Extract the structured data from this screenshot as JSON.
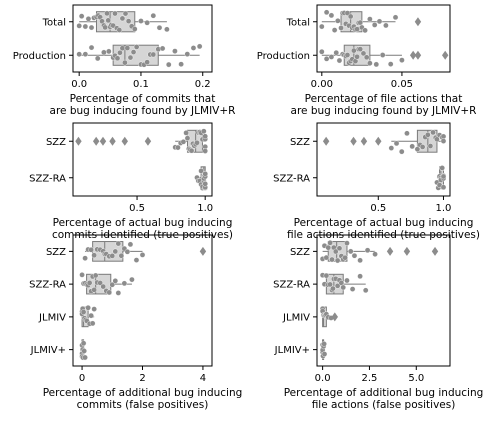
{
  "chart_data": [
    {
      "type": "box",
      "xlabel": [
        "Percentage of commits that",
        "are bug inducing found by JLMIV+R"
      ],
      "ylabel": "",
      "xlim": [
        -0.01,
        0.215
      ],
      "xticks": [
        0.0,
        0.1,
        0.2
      ],
      "xtick_labels": [
        "0.0",
        "0.1",
        "0.2"
      ],
      "categories": [
        "Total",
        "Production"
      ],
      "series": [
        {
          "category": "Total",
          "q1": 0.028,
          "median": 0.05,
          "q3": 0.09,
          "whisker_low": 0.0,
          "whisker_high": 0.142,
          "fliers": [],
          "points": [
            0.0,
            0.004,
            0.01,
            0.015,
            0.02,
            0.024,
            0.028,
            0.031,
            0.034,
            0.037,
            0.04,
            0.042,
            0.045,
            0.047,
            0.05,
            0.052,
            0.055,
            0.058,
            0.061,
            0.065,
            0.07,
            0.075,
            0.08,
            0.085,
            0.09,
            0.1,
            0.11,
            0.12,
            0.13,
            0.142
          ]
        },
        {
          "category": "Production",
          "q1": 0.055,
          "median": 0.074,
          "q3": 0.128,
          "whisker_low": 0.0,
          "whisker_high": 0.195,
          "fliers": [],
          "points": [
            0.0,
            0.01,
            0.02,
            0.03,
            0.04,
            0.048,
            0.055,
            0.058,
            0.062,
            0.066,
            0.07,
            0.074,
            0.078,
            0.083,
            0.088,
            0.093,
            0.1,
            0.105,
            0.11,
            0.115,
            0.12,
            0.128,
            0.135,
            0.145,
            0.155,
            0.165,
            0.175,
            0.185,
            0.195
          ]
        }
      ]
    },
    {
      "type": "box",
      "xlabel": [
        "Percentage of file actions that",
        "are bug inducing found by JLMIV+R"
      ],
      "ylabel": "",
      "xlim": [
        -0.003,
        0.08
      ],
      "xticks": [
        0.0,
        0.05
      ],
      "xtick_labels": [
        "0.00",
        "0.05"
      ],
      "categories": [
        "Total",
        "Production"
      ],
      "series": [
        {
          "category": "Total",
          "q1": 0.012,
          "median": 0.018,
          "q3": 0.025,
          "whisker_low": 0.0,
          "whisker_high": 0.046,
          "fliers": [
            0.06
          ],
          "points": [
            0.0,
            0.003,
            0.006,
            0.008,
            0.01,
            0.012,
            0.013,
            0.014,
            0.015,
            0.016,
            0.017,
            0.018,
            0.019,
            0.02,
            0.021,
            0.022,
            0.023,
            0.024,
            0.025,
            0.027,
            0.03,
            0.033,
            0.036,
            0.04,
            0.046
          ]
        },
        {
          "category": "Production",
          "q1": 0.014,
          "median": 0.02,
          "q3": 0.03,
          "whisker_low": 0.0,
          "whisker_high": 0.05,
          "fliers": [
            0.057,
            0.06,
            0.077
          ],
          "points": [
            0.0,
            0.003,
            0.006,
            0.009,
            0.011,
            0.013,
            0.014,
            0.015,
            0.016,
            0.017,
            0.018,
            0.019,
            0.02,
            0.021,
            0.022,
            0.023,
            0.024,
            0.026,
            0.028,
            0.03,
            0.034,
            0.038,
            0.043,
            0.05
          ]
        }
      ]
    },
    {
      "type": "box",
      "xlabel": [
        "Percentage of actual bug inducing",
        "commits identified (true positives)"
      ],
      "ylabel": "",
      "xlim": [
        0.03,
        1.05
      ],
      "xticks": [
        0.5,
        1.0
      ],
      "xtick_labels": [
        "0.5",
        "1.0"
      ],
      "categories": [
        "SZZ",
        "SZZ-RA"
      ],
      "series": [
        {
          "category": "SZZ",
          "q1": 0.87,
          "median": 0.93,
          "q3": 0.98,
          "whisker_low": 0.78,
          "whisker_high": 1.0,
          "fliers": [
            0.07,
            0.2,
            0.25,
            0.32,
            0.41,
            0.58
          ],
          "points": [
            0.78,
            0.8,
            0.82,
            0.84,
            0.86,
            0.87,
            0.88,
            0.89,
            0.9,
            0.91,
            0.92,
            0.93,
            0.94,
            0.95,
            0.96,
            0.97,
            0.98,
            0.99,
            1.0,
            1.0,
            1.0,
            1.0
          ]
        },
        {
          "category": "SZZ-RA",
          "q1": 0.97,
          "median": 0.99,
          "q3": 1.0,
          "whisker_low": 0.94,
          "whisker_high": 1.0,
          "fliers": [],
          "points": [
            0.94,
            0.95,
            0.96,
            0.97,
            0.97,
            0.98,
            0.98,
            0.99,
            0.99,
            0.99,
            1.0,
            1.0,
            1.0,
            1.0,
            1.0,
            1.0,
            1.0,
            1.0
          ]
        }
      ]
    },
    {
      "type": "box",
      "xlabel": [
        "Percentage of actual bug inducing",
        "file actions identified (true positives)"
      ],
      "ylabel": "",
      "xlim": [
        0.03,
        1.05
      ],
      "xticks": [
        0.5,
        1.0
      ],
      "xtick_labels": [
        "0.5",
        "1.0"
      ],
      "categories": [
        "SZZ",
        "SZZ-RA"
      ],
      "series": [
        {
          "category": "SZZ",
          "q1": 0.8,
          "median": 0.88,
          "q3": 0.95,
          "whisker_low": 0.6,
          "whisker_high": 1.0,
          "fliers": [
            0.1,
            0.31,
            0.39,
            0.5
          ],
          "points": [
            0.6,
            0.64,
            0.68,
            0.72,
            0.76,
            0.8,
            0.82,
            0.84,
            0.86,
            0.88,
            0.9,
            0.92,
            0.94,
            0.95,
            0.97,
            0.99,
            1.0,
            1.0
          ]
        },
        {
          "category": "SZZ-RA",
          "q1": 0.97,
          "median": 0.98,
          "q3": 1.0,
          "whisker_low": 0.95,
          "whisker_high": 1.0,
          "fliers": [],
          "points": [
            0.95,
            0.96,
            0.97,
            0.97,
            0.98,
            0.98,
            0.99,
            0.99,
            1.0,
            1.0,
            1.0,
            1.0,
            1.0
          ]
        }
      ]
    },
    {
      "type": "box",
      "xlabel": [
        "Percentage of additional bug inducing",
        "commits (false positives)"
      ],
      "ylabel": "",
      "xlim": [
        -0.3,
        4.3
      ],
      "xticks": [
        0,
        2,
        4
      ],
      "xtick_labels": [
        "0",
        "2",
        "4"
      ],
      "categories": [
        "SZZ",
        "SZZ-RA",
        "JLMIV",
        "JLMIV+"
      ],
      "series": [
        {
          "category": "SZZ",
          "q1": 0.35,
          "median": 0.75,
          "q3": 1.35,
          "whisker_low": 0.1,
          "whisker_high": 2.0,
          "fliers": [
            4.0
          ],
          "points": [
            0.1,
            0.2,
            0.3,
            0.4,
            0.5,
            0.6,
            0.7,
            0.75,
            0.8,
            0.9,
            1.0,
            1.1,
            1.2,
            1.3,
            1.4,
            1.5,
            1.6,
            1.8,
            2.0
          ]
        },
        {
          "category": "SZZ-RA",
          "q1": 0.15,
          "median": 0.45,
          "q3": 0.95,
          "whisker_low": 0.0,
          "whisker_high": 1.65,
          "fliers": [],
          "points": [
            0.0,
            0.05,
            0.1,
            0.15,
            0.2,
            0.25,
            0.3,
            0.35,
            0.4,
            0.45,
            0.5,
            0.6,
            0.7,
            0.8,
            0.9,
            1.0,
            1.1,
            1.2,
            1.4,
            1.65
          ]
        },
        {
          "category": "JLMIV",
          "q1": 0.0,
          "median": 0.05,
          "q3": 0.2,
          "whisker_low": 0.0,
          "whisker_high": 0.4,
          "fliers": [],
          "points": [
            0.0,
            0.0,
            0.02,
            0.05,
            0.08,
            0.12,
            0.16,
            0.2,
            0.25,
            0.3,
            0.35,
            0.4
          ]
        },
        {
          "category": "JLMIV+",
          "q1": 0.0,
          "median": 0.0,
          "q3": 0.05,
          "whisker_low": 0.0,
          "whisker_high": 0.1,
          "fliers": [],
          "points": [
            0.0,
            0.0,
            0.0,
            0.0,
            0.02,
            0.03,
            0.05,
            0.07,
            0.1
          ]
        }
      ]
    },
    {
      "type": "box",
      "xlabel": [
        "Percentage of additional bug inducing",
        "file actions (false positives)"
      ],
      "ylabel": "",
      "xlim": [
        -0.3,
        6.8
      ],
      "xticks": [
        0.0,
        2.5,
        5.0
      ],
      "xtick_labels": [
        "0.0",
        "2.5",
        "5.0"
      ],
      "categories": [
        "SZZ",
        "SZZ-RA",
        "JLMIV",
        "JLMIV+"
      ],
      "series": [
        {
          "category": "SZZ",
          "q1": 0.3,
          "median": 0.75,
          "q3": 1.3,
          "whisker_low": 0.0,
          "whisker_high": 2.8,
          "fliers": [
            3.6,
            4.5,
            6.0
          ],
          "points": [
            0.0,
            0.1,
            0.2,
            0.3,
            0.4,
            0.5,
            0.6,
            0.7,
            0.8,
            0.9,
            1.0,
            1.1,
            1.2,
            1.3,
            1.5,
            1.7,
            2.0,
            2.4,
            2.8
          ]
        },
        {
          "category": "SZZ-RA",
          "q1": 0.2,
          "median": 0.6,
          "q3": 1.1,
          "whisker_low": 0.0,
          "whisker_high": 2.3,
          "fliers": [],
          "points": [
            0.0,
            0.1,
            0.2,
            0.3,
            0.4,
            0.5,
            0.55,
            0.6,
            0.7,
            0.8,
            0.9,
            1.0,
            1.1,
            1.3,
            1.6,
            2.0,
            2.3
          ]
        },
        {
          "category": "JLMIV",
          "q1": 0.0,
          "median": 0.05,
          "q3": 0.2,
          "whisker_low": 0.0,
          "whisker_high": 0.45,
          "fliers": [
            0.65
          ],
          "points": [
            0.0,
            0.0,
            0.05,
            0.1,
            0.15,
            0.2,
            0.3,
            0.45
          ]
        },
        {
          "category": "JLMIV+",
          "q1": 0.0,
          "median": 0.0,
          "q3": 0.05,
          "whisker_low": 0.0,
          "whisker_high": 0.1,
          "fliers": [],
          "points": [
            0.0,
            0.0,
            0.0,
            0.02,
            0.05,
            0.08,
            0.1
          ]
        }
      ]
    }
  ]
}
